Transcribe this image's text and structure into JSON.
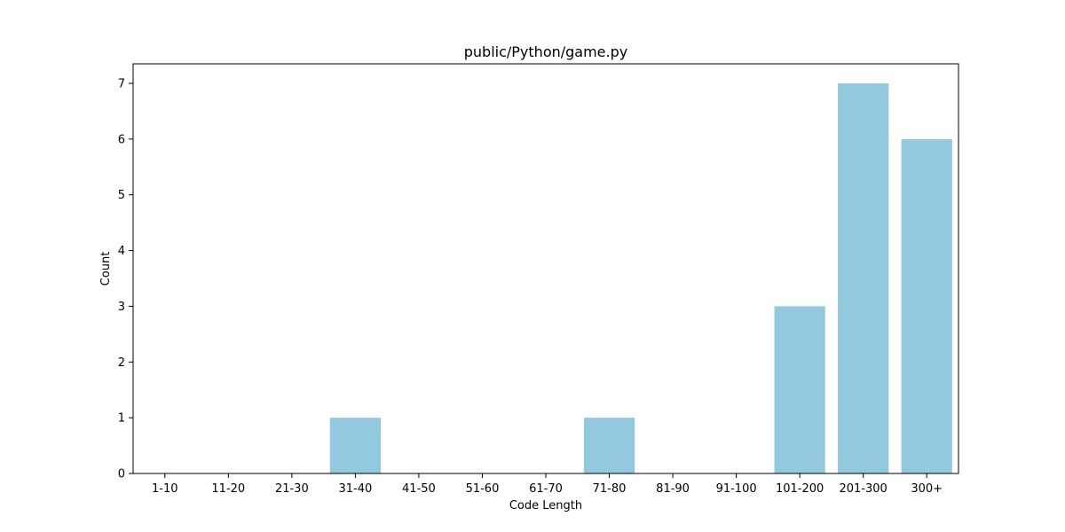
{
  "chart_data": {
    "type": "bar",
    "title": "public/Python/game.py",
    "xlabel": "Code Length",
    "ylabel": "Count",
    "categories": [
      "1-10",
      "11-20",
      "21-30",
      "31-40",
      "41-50",
      "51-60",
      "61-70",
      "71-80",
      "81-90",
      "91-100",
      "101-200",
      "201-300",
      "300+"
    ],
    "values": [
      0,
      0,
      0,
      1,
      0,
      0,
      0,
      1,
      0,
      0,
      3,
      7,
      6
    ],
    "ylim": [
      0,
      7.35
    ],
    "yticks": [
      0,
      1,
      2,
      3,
      4,
      5,
      6,
      7
    ],
    "grid": false,
    "legend": "none",
    "bar_color": "#92c9df"
  }
}
